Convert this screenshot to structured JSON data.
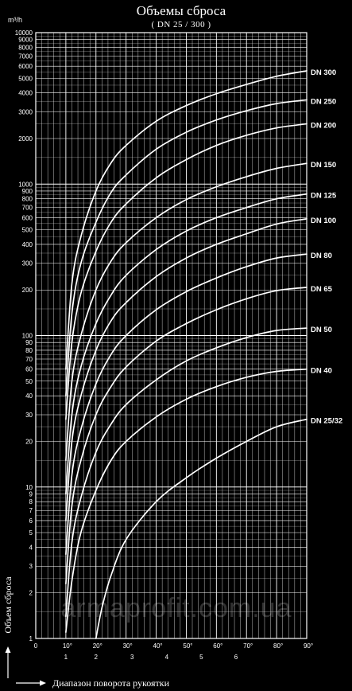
{
  "chart_data": {
    "type": "line",
    "title": "Объемы сброса",
    "subtitle": "( DN 25 / 300 )",
    "ylabel": "Объем сброса",
    "y_unit": "m³/h",
    "xlabel": "Диапазон поворота рукоятки",
    "y_scale": "log",
    "ylim": [
      1,
      10000
    ],
    "xlim": [
      0,
      90
    ],
    "grid": true,
    "watermark": "armaprofit.com.ua",
    "y_tick_labels": [
      "1",
      "2",
      "3",
      "4",
      "5",
      "6",
      "7",
      "8",
      "9",
      "10",
      "20",
      "30",
      "40",
      "50",
      "60",
      "70",
      "80",
      "90",
      "100",
      "200",
      "300",
      "400",
      "500",
      "600",
      "700",
      "800",
      "900",
      "1000",
      "2000",
      "3000",
      "4000",
      "5000",
      "6000",
      "7000",
      "8000",
      "9000",
      "10000"
    ],
    "x_major_ticks": [
      {
        "value": 0,
        "label": "0"
      },
      {
        "value": 10,
        "label": "10°"
      },
      {
        "value": 20,
        "label": "20°"
      },
      {
        "value": 30,
        "label": "30°"
      },
      {
        "value": 40,
        "label": "40°"
      },
      {
        "value": 50,
        "label": "50°"
      },
      {
        "value": 60,
        "label": "60°"
      },
      {
        "value": 70,
        "label": "70°"
      },
      {
        "value": 80,
        "label": "80°"
      },
      {
        "value": 90,
        "label": "90°"
      }
    ],
    "x_minor_ticks": [
      {
        "value": 10,
        "label": "1"
      },
      {
        "value": 20,
        "label": "2"
      },
      {
        "value": 32,
        "label": "3"
      },
      {
        "value": 43.5,
        "label": "4"
      },
      {
        "value": 55,
        "label": "5"
      },
      {
        "value": 66.5,
        "label": "6"
      }
    ],
    "series": [
      {
        "name": "DN 300",
        "x": [
          10,
          12,
          15,
          20,
          25,
          30,
          40,
          50,
          60,
          70,
          80,
          90
        ],
        "y": [
          60,
          220,
          450,
          900,
          1380,
          1800,
          2600,
          3300,
          3950,
          4550,
          5150,
          5600
        ]
      },
      {
        "name": "DN 250",
        "x": [
          10,
          12,
          15,
          20,
          25,
          30,
          40,
          50,
          60,
          70,
          80,
          90
        ],
        "y": [
          40,
          140,
          300,
          560,
          880,
          1150,
          1700,
          2200,
          2650,
          3050,
          3400,
          3600
        ]
      },
      {
        "name": "DN 200",
        "x": [
          10,
          12,
          15,
          20,
          25,
          30,
          40,
          50,
          60,
          70,
          80,
          90
        ],
        "y": [
          28,
          90,
          190,
          360,
          560,
          740,
          1100,
          1450,
          1800,
          2100,
          2350,
          2500
        ]
      },
      {
        "name": "DN 150",
        "x": [
          10,
          12,
          15,
          20,
          25,
          30,
          40,
          50,
          60,
          70,
          80,
          90
        ],
        "y": [
          15,
          50,
          100,
          200,
          310,
          410,
          600,
          790,
          960,
          1120,
          1270,
          1370
        ]
      },
      {
        "name": "DN 125",
        "x": [
          10,
          12,
          15,
          20,
          25,
          30,
          40,
          50,
          60,
          70,
          80,
          90
        ],
        "y": [
          9,
          30,
          62,
          120,
          185,
          250,
          370,
          490,
          600,
          700,
          800,
          860
        ]
      },
      {
        "name": "DN 100",
        "x": [
          10,
          12,
          15,
          20,
          25,
          30,
          40,
          50,
          60,
          70,
          80,
          90
        ],
        "y": [
          6,
          20,
          40,
          80,
          125,
          165,
          245,
          325,
          400,
          470,
          545,
          590
        ]
      },
      {
        "name": "DN 80",
        "x": [
          10,
          12,
          15,
          20,
          25,
          30,
          40,
          50,
          60,
          70,
          80,
          90
        ],
        "y": [
          3.6,
          12,
          24,
          48,
          75,
          100,
          148,
          195,
          240,
          285,
          325,
          345
        ]
      },
      {
        "name": "DN 65",
        "x": [
          10,
          12,
          15,
          20,
          25,
          30,
          40,
          50,
          60,
          70,
          80,
          90
        ],
        "y": [
          2.3,
          7.5,
          15,
          30,
          46,
          62,
          92,
          120,
          148,
          175,
          198,
          208
        ]
      },
      {
        "name": "DN 50",
        "x": [
          10,
          12,
          15,
          20,
          25,
          30,
          40,
          50,
          60,
          70,
          80,
          90
        ],
        "y": [
          1.4,
          4.3,
          8.5,
          17,
          26,
          35,
          51,
          68,
          83,
          97,
          108,
          112
        ]
      },
      {
        "name": "DN 40",
        "x": [
          10,
          12,
          15,
          20,
          25,
          30,
          40,
          50,
          60,
          70,
          80,
          90
        ],
        "y": [
          1.1,
          2.4,
          5,
          9.5,
          15,
          20,
          29,
          38,
          46,
          53,
          58,
          60
        ]
      },
      {
        "name": "DN 25/32",
        "x": [
          20,
          22,
          25,
          30,
          40,
          50,
          60,
          70,
          80,
          90
        ],
        "y": [
          1,
          1.6,
          2.6,
          4.5,
          8,
          11.5,
          15.5,
          20,
          25,
          28
        ]
      }
    ]
  }
}
